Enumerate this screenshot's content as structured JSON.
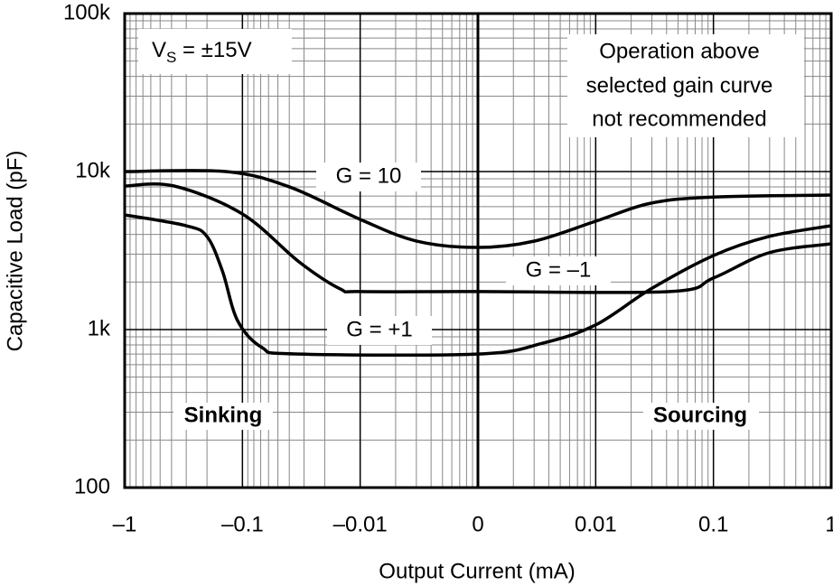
{
  "chart_data": {
    "type": "line",
    "x_label": "Output Current (mA)",
    "y_label": "Capacitive Load (pF)",
    "xscale": "symlog",
    "yscale": "log",
    "grid": true,
    "xlim": [
      -1,
      1
    ],
    "ylim": [
      100,
      100000
    ],
    "xticks": [
      {
        "value": -1,
        "label": "–1"
      },
      {
        "value": -0.1,
        "label": "–0.1"
      },
      {
        "value": -0.01,
        "label": "–0.01"
      },
      0,
      0.01,
      0.1,
      1
    ],
    "yticks": [
      100,
      {
        "value": 1000,
        "label": "1k"
      },
      {
        "value": 10000,
        "label": "10k"
      },
      {
        "value": 100000,
        "label": "100k"
      }
    ],
    "annotations": {
      "supply": [
        "V",
        "S",
        " = ±15V"
      ],
      "note": [
        "Operation above",
        "selected gain curve",
        "not recommended"
      ],
      "left": "Sinking",
      "right": "Sourcing"
    },
    "series": [
      {
        "name": "G = 10",
        "color": "#000000",
        "x": [
          -1,
          -0.138,
          -0.04,
          -0.01,
          -0.0052,
          0,
          0.0048,
          0.01,
          0.0295,
          0.1,
          1
        ],
        "values": [
          10000,
          10000,
          8000,
          4980,
          3630,
          3310,
          3630,
          4850,
          6310,
          6900,
          7100
        ]
      },
      {
        "name": "G = –1",
        "color": "#000000",
        "x": [
          -1,
          -0.38,
          -0.1,
          -0.033,
          -0.0148,
          -0.01,
          0,
          0.0427,
          0.1,
          0.295,
          1
        ],
        "values": [
          8100,
          8100,
          5390,
          2680,
          1810,
          1740,
          1740,
          1740,
          2120,
          3060,
          3490
        ]
      },
      {
        "name": "G = +1",
        "color": "#000000",
        "x": [
          -1,
          -0.3,
          -0.2,
          -0.148,
          -0.11,
          -0.068,
          -0.036,
          0,
          0.0055,
          0.01,
          0.0295,
          0.1,
          0.295,
          1
        ],
        "values": [
          5320,
          4540,
          3880,
          2350,
          1140,
          769,
          701,
          700,
          820,
          1070,
          1810,
          2940,
          3880,
          4540
        ]
      }
    ]
  }
}
